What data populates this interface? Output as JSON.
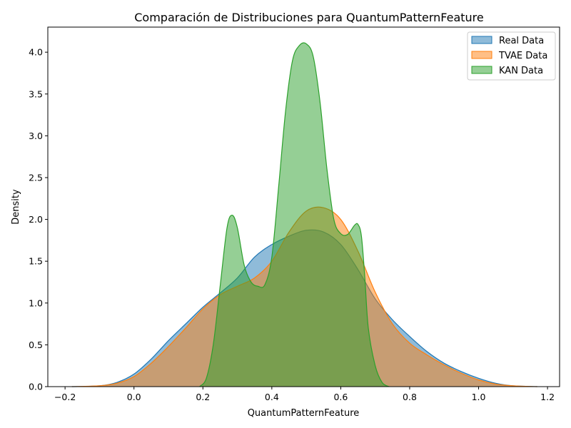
{
  "chart_data": {
    "type": "area",
    "title": "Comparación de Distribuciones para QuantumPatternFeature",
    "xlabel": "QuantumPatternFeature",
    "ylabel": "Density",
    "xlim": [
      -0.25,
      1.235
    ],
    "ylim": [
      0,
      4.3
    ],
    "xticks": [
      -0.2,
      0.0,
      0.2,
      0.4,
      0.6,
      0.8,
      1.0,
      1.2
    ],
    "xtick_labels": [
      "−0.2",
      "0.0",
      "0.2",
      "0.4",
      "0.6",
      "0.8",
      "1.0",
      "1.2"
    ],
    "yticks": [
      0.0,
      0.5,
      1.0,
      1.5,
      2.0,
      2.5,
      3.0,
      3.5,
      4.0
    ],
    "ytick_labels": [
      "0.0",
      "0.5",
      "1.0",
      "1.5",
      "2.0",
      "2.5",
      "3.0",
      "3.5",
      "4.0"
    ],
    "grid": false,
    "legend_position": "top-right",
    "series": [
      {
        "name": "Real Data",
        "color": "#1f77b4",
        "x": [
          -0.18,
          -0.1,
          -0.05,
          0.0,
          0.05,
          0.1,
          0.15,
          0.2,
          0.25,
          0.3,
          0.35,
          0.4,
          0.45,
          0.5,
          0.55,
          0.6,
          0.65,
          0.7,
          0.75,
          0.8,
          0.85,
          0.9,
          0.95,
          1.0,
          1.05,
          1.1,
          1.17
        ],
        "y": [
          0.0,
          0.01,
          0.05,
          0.15,
          0.33,
          0.55,
          0.75,
          0.95,
          1.12,
          1.3,
          1.55,
          1.7,
          1.8,
          1.87,
          1.85,
          1.7,
          1.4,
          1.05,
          0.8,
          0.6,
          0.42,
          0.28,
          0.18,
          0.1,
          0.04,
          0.01,
          0.0
        ]
      },
      {
        "name": "TVAE Data",
        "color": "#ff7f0e",
        "x": [
          -0.18,
          -0.1,
          -0.05,
          0.0,
          0.05,
          0.1,
          0.15,
          0.2,
          0.25,
          0.3,
          0.35,
          0.4,
          0.45,
          0.5,
          0.55,
          0.6,
          0.65,
          0.7,
          0.75,
          0.8,
          0.85,
          0.9,
          0.95,
          1.0,
          1.05,
          1.1,
          1.17
        ],
        "y": [
          0.0,
          0.01,
          0.04,
          0.12,
          0.28,
          0.48,
          0.7,
          0.93,
          1.1,
          1.2,
          1.3,
          1.5,
          1.85,
          2.1,
          2.14,
          2.0,
          1.62,
          1.13,
          0.75,
          0.52,
          0.38,
          0.26,
          0.16,
          0.08,
          0.03,
          0.01,
          0.0
        ]
      },
      {
        "name": "KAN Data",
        "color": "#2ca02c",
        "x": [
          0.19,
          0.21,
          0.23,
          0.25,
          0.27,
          0.285,
          0.3,
          0.32,
          0.34,
          0.36,
          0.38,
          0.4,
          0.42,
          0.44,
          0.46,
          0.48,
          0.5,
          0.52,
          0.54,
          0.56,
          0.58,
          0.6,
          0.62,
          0.64,
          0.65,
          0.66,
          0.67,
          0.68,
          0.7,
          0.72,
          0.74
        ],
        "y": [
          0.0,
          0.1,
          0.5,
          1.2,
          1.9,
          2.05,
          1.9,
          1.45,
          1.25,
          1.2,
          1.22,
          1.55,
          2.4,
          3.3,
          3.9,
          4.08,
          4.1,
          3.95,
          3.4,
          2.6,
          2.0,
          1.83,
          1.82,
          1.93,
          1.94,
          1.8,
          1.3,
          0.7,
          0.25,
          0.05,
          0.0
        ]
      }
    ]
  }
}
